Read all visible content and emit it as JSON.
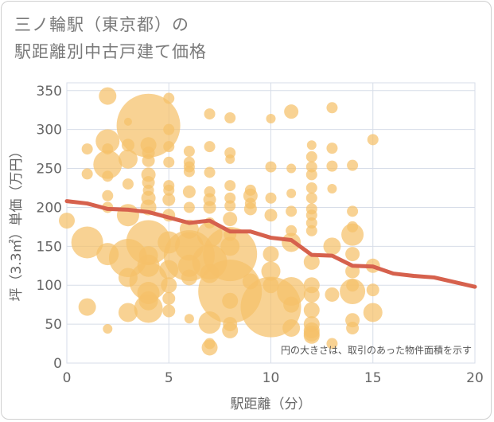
{
  "title": {
    "line1": "三ノ輪駅（東京都）の",
    "line2": "駅距離別中古戸建て価格"
  },
  "note": "円の大きさは、取引のあった物件面積を示す",
  "colors": {
    "bubble": "#f5c06a",
    "line": "#d6614d",
    "grid": "#d7dde8",
    "plot_bg": "#ffffff"
  },
  "chart_data": {
    "type": "scatter",
    "xlabel": "駅距離（分）",
    "ylabel": "坪（3.3㎡）単価（万円）",
    "xlim": [
      0,
      20
    ],
    "ylim": [
      0,
      360
    ],
    "xticks": [
      0,
      5,
      10,
      15,
      20
    ],
    "yticks": [
      0,
      50,
      100,
      150,
      200,
      250,
      300,
      350
    ],
    "grid": true,
    "points": [
      {
        "x": 2,
        "y": 343,
        "s": 11
      },
      {
        "x": 5,
        "y": 340,
        "s": 7
      },
      {
        "x": 4,
        "y": 305,
        "s": 40
      },
      {
        "x": 3,
        "y": 310,
        "s": 5
      },
      {
        "x": 5,
        "y": 300,
        "s": 7
      },
      {
        "x": 7,
        "y": 320,
        "s": 7
      },
      {
        "x": 8,
        "y": 315,
        "s": 7
      },
      {
        "x": 10,
        "y": 314,
        "s": 6
      },
      {
        "x": 11,
        "y": 323,
        "s": 9
      },
      {
        "x": 13,
        "y": 328,
        "s": 7
      },
      {
        "x": 15,
        "y": 287,
        "s": 7
      },
      {
        "x": 2,
        "y": 285,
        "s": 15
      },
      {
        "x": 1,
        "y": 275,
        "s": 7
      },
      {
        "x": 2,
        "y": 275,
        "s": 7
      },
      {
        "x": 3,
        "y": 280,
        "s": 8
      },
      {
        "x": 4,
        "y": 280,
        "s": 10
      },
      {
        "x": 4,
        "y": 270,
        "s": 8
      },
      {
        "x": 5,
        "y": 278,
        "s": 7
      },
      {
        "x": 6,
        "y": 272,
        "s": 7
      },
      {
        "x": 7,
        "y": 278,
        "s": 7
      },
      {
        "x": 8,
        "y": 270,
        "s": 7
      },
      {
        "x": 8,
        "y": 262,
        "s": 6
      },
      {
        "x": 12,
        "y": 280,
        "s": 6
      },
      {
        "x": 13,
        "y": 276,
        "s": 7
      },
      {
        "x": 12,
        "y": 265,
        "s": 7
      },
      {
        "x": 2,
        "y": 255,
        "s": 18
      },
      {
        "x": 3,
        "y": 262,
        "s": 12
      },
      {
        "x": 4,
        "y": 260,
        "s": 8
      },
      {
        "x": 5,
        "y": 258,
        "s": 7
      },
      {
        "x": 6,
        "y": 258,
        "s": 7
      },
      {
        "x": 6,
        "y": 252,
        "s": 7
      },
      {
        "x": 6,
        "y": 246,
        "s": 7
      },
      {
        "x": 7,
        "y": 245,
        "s": 7
      },
      {
        "x": 1,
        "y": 243,
        "s": 7
      },
      {
        "x": 2,
        "y": 240,
        "s": 7
      },
      {
        "x": 4,
        "y": 242,
        "s": 9
      },
      {
        "x": 10,
        "y": 252,
        "s": 7
      },
      {
        "x": 11,
        "y": 250,
        "s": 6
      },
      {
        "x": 12,
        "y": 252,
        "s": 7
      },
      {
        "x": 12,
        "y": 242,
        "s": 7
      },
      {
        "x": 13,
        "y": 253,
        "s": 7
      },
      {
        "x": 14,
        "y": 254,
        "s": 7
      },
      {
        "x": 3,
        "y": 230,
        "s": 7
      },
      {
        "x": 4,
        "y": 232,
        "s": 8
      },
      {
        "x": 4,
        "y": 222,
        "s": 7
      },
      {
        "x": 5,
        "y": 228,
        "s": 7
      },
      {
        "x": 5,
        "y": 222,
        "s": 7
      },
      {
        "x": 6,
        "y": 220,
        "s": 8
      },
      {
        "x": 7,
        "y": 220,
        "s": 7
      },
      {
        "x": 8,
        "y": 228,
        "s": 7
      },
      {
        "x": 9,
        "y": 222,
        "s": 7
      },
      {
        "x": 9,
        "y": 215,
        "s": 9
      },
      {
        "x": 11,
        "y": 218,
        "s": 6
      },
      {
        "x": 12,
        "y": 225,
        "s": 7
      },
      {
        "x": 13,
        "y": 224,
        "s": 6
      },
      {
        "x": 2,
        "y": 215,
        "s": 7
      },
      {
        "x": 4,
        "y": 212,
        "s": 9
      },
      {
        "x": 5,
        "y": 210,
        "s": 8
      },
      {
        "x": 7,
        "y": 210,
        "s": 8
      },
      {
        "x": 8,
        "y": 212,
        "s": 7
      },
      {
        "x": 9,
        "y": 205,
        "s": 7
      },
      {
        "x": 10,
        "y": 212,
        "s": 7
      },
      {
        "x": 12,
        "y": 212,
        "s": 7
      },
      {
        "x": 2,
        "y": 200,
        "s": 7
      },
      {
        "x": 4,
        "y": 200,
        "s": 10
      },
      {
        "x": 6,
        "y": 200,
        "s": 7
      },
      {
        "x": 7,
        "y": 200,
        "s": 8
      },
      {
        "x": 8,
        "y": 202,
        "s": 7
      },
      {
        "x": 9,
        "y": 198,
        "s": 8
      },
      {
        "x": 11,
        "y": 195,
        "s": 7
      },
      {
        "x": 12,
        "y": 198,
        "s": 7
      },
      {
        "x": 14,
        "y": 195,
        "s": 7
      },
      {
        "x": 3,
        "y": 190,
        "s": 14
      },
      {
        "x": 5,
        "y": 190,
        "s": 8
      },
      {
        "x": 8,
        "y": 185,
        "s": 9
      },
      {
        "x": 10,
        "y": 190,
        "s": 8
      },
      {
        "x": 12,
        "y": 190,
        "s": 7
      },
      {
        "x": 0,
        "y": 183,
        "s": 10
      },
      {
        "x": 7,
        "y": 180,
        "s": 7
      },
      {
        "x": 12,
        "y": 180,
        "s": 7
      },
      {
        "x": 14,
        "y": 175,
        "s": 7
      },
      {
        "x": 6,
        "y": 172,
        "s": 12
      },
      {
        "x": 7,
        "y": 165,
        "s": 16
      },
      {
        "x": 8,
        "y": 165,
        "s": 8
      },
      {
        "x": 11,
        "y": 170,
        "s": 7
      },
      {
        "x": 12,
        "y": 170,
        "s": 7
      },
      {
        "x": 14,
        "y": 165,
        "s": 14
      },
      {
        "x": 1,
        "y": 155,
        "s": 20
      },
      {
        "x": 4,
        "y": 155,
        "s": 28
      },
      {
        "x": 5,
        "y": 155,
        "s": 14
      },
      {
        "x": 6,
        "y": 150,
        "s": 18
      },
      {
        "x": 8,
        "y": 150,
        "s": 12
      },
      {
        "x": 11,
        "y": 155,
        "s": 12
      },
      {
        "x": 13,
        "y": 150,
        "s": 11
      },
      {
        "x": 2,
        "y": 140,
        "s": 14
      },
      {
        "x": 3,
        "y": 135,
        "s": 24
      },
      {
        "x": 4,
        "y": 138,
        "s": 12
      },
      {
        "x": 6,
        "y": 138,
        "s": 32
      },
      {
        "x": 6,
        "y": 125,
        "s": 14
      },
      {
        "x": 7,
        "y": 130,
        "s": 22
      },
      {
        "x": 8,
        "y": 140,
        "s": 34
      },
      {
        "x": 10,
        "y": 140,
        "s": 10
      },
      {
        "x": 12,
        "y": 130,
        "s": 10
      },
      {
        "x": 14,
        "y": 140,
        "s": 9
      },
      {
        "x": 15,
        "y": 125,
        "s": 9
      },
      {
        "x": 4,
        "y": 125,
        "s": 14
      },
      {
        "x": 5,
        "y": 120,
        "s": 12
      },
      {
        "x": 7,
        "y": 115,
        "s": 12
      },
      {
        "x": 10,
        "y": 118,
        "s": 12
      },
      {
        "x": 14,
        "y": 118,
        "s": 9
      },
      {
        "x": 3,
        "y": 110,
        "s": 12
      },
      {
        "x": 4,
        "y": 105,
        "s": 24
      },
      {
        "x": 5,
        "y": 100,
        "s": 10
      },
      {
        "x": 6,
        "y": 110,
        "s": 10
      },
      {
        "x": 9,
        "y": 105,
        "s": 10
      },
      {
        "x": 10,
        "y": 100,
        "s": 10
      },
      {
        "x": 12,
        "y": 100,
        "s": 10
      },
      {
        "x": 14,
        "y": 100,
        "s": 8
      },
      {
        "x": 8,
        "y": 92,
        "s": 40
      },
      {
        "x": 11,
        "y": 92,
        "s": 18
      },
      {
        "x": 4,
        "y": 90,
        "s": 14
      },
      {
        "x": 12,
        "y": 88,
        "s": 10
      },
      {
        "x": 13,
        "y": 88,
        "s": 9
      },
      {
        "x": 14,
        "y": 92,
        "s": 16
      },
      {
        "x": 15,
        "y": 94,
        "s": 8
      },
      {
        "x": 4,
        "y": 80,
        "s": 12
      },
      {
        "x": 5,
        "y": 83,
        "s": 8
      },
      {
        "x": 8,
        "y": 80,
        "s": 10
      },
      {
        "x": 10,
        "y": 72,
        "s": 38
      },
      {
        "x": 11,
        "y": 75,
        "s": 10
      },
      {
        "x": 1,
        "y": 72,
        "s": 11
      },
      {
        "x": 3,
        "y": 65,
        "s": 12
      },
      {
        "x": 4,
        "y": 70,
        "s": 18
      },
      {
        "x": 5,
        "y": 67,
        "s": 8
      },
      {
        "x": 12,
        "y": 68,
        "s": 10
      },
      {
        "x": 15,
        "y": 65,
        "s": 12
      },
      {
        "x": 6,
        "y": 57,
        "s": 6
      },
      {
        "x": 7,
        "y": 52,
        "s": 14
      },
      {
        "x": 8,
        "y": 50,
        "s": 9
      },
      {
        "x": 11,
        "y": 45,
        "s": 11
      },
      {
        "x": 12,
        "y": 50,
        "s": 10
      },
      {
        "x": 12,
        "y": 42,
        "s": 10
      },
      {
        "x": 14,
        "y": 55,
        "s": 9
      },
      {
        "x": 14,
        "y": 45,
        "s": 8
      },
      {
        "x": 2,
        "y": 44,
        "s": 6
      },
      {
        "x": 8,
        "y": 42,
        "s": 10
      },
      {
        "x": 12,
        "y": 38,
        "s": 10
      },
      {
        "x": 7,
        "y": 25,
        "s": 7
      },
      {
        "x": 7,
        "y": 20,
        "s": 10
      },
      {
        "x": 13,
        "y": 25,
        "s": 7
      },
      {
        "x": 12,
        "y": 35,
        "s": 10
      }
    ],
    "series": [
      {
        "type": "line",
        "x": [
          0,
          1,
          2,
          3,
          4,
          5,
          6,
          7,
          8,
          9,
          10,
          11,
          12,
          13,
          14,
          15,
          16,
          17,
          18,
          19,
          20
        ],
        "values": [
          208,
          205,
          198,
          197,
          194,
          187,
          180,
          183,
          169,
          169,
          161,
          158,
          139,
          138,
          125,
          124,
          115,
          112,
          110,
          104,
          98
        ]
      }
    ]
  }
}
